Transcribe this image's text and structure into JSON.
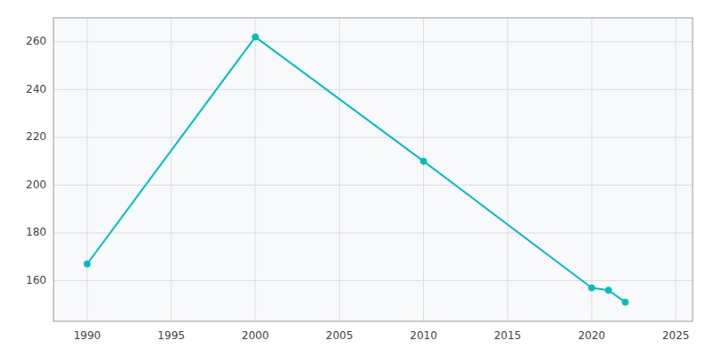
{
  "chart_data": {
    "type": "line",
    "x": [
      1990,
      2000,
      2010,
      2020,
      2021,
      2022
    ],
    "values": [
      167,
      262,
      210,
      157,
      156,
      151
    ],
    "color": "#00BFBF",
    "marker": "circle",
    "xlim": [
      1988,
      2026
    ],
    "ylim": [
      143,
      270
    ],
    "xticks": [
      1990,
      1995,
      2000,
      2005,
      2010,
      2015,
      2020,
      2025
    ],
    "yticks": [
      160,
      180,
      200,
      220,
      240,
      260
    ],
    "grid": true
  }
}
